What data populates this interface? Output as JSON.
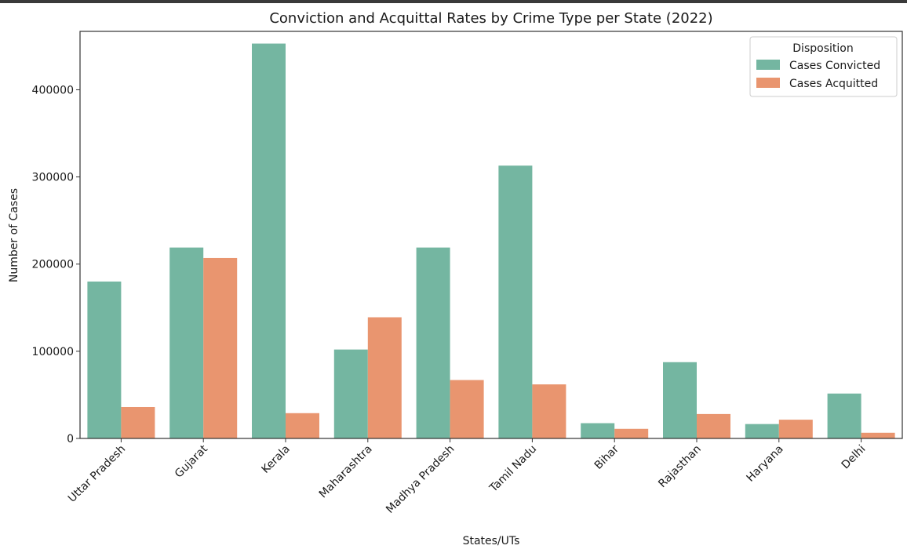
{
  "chart_data": {
    "type": "bar",
    "title": "Conviction and Acquittal Rates by Crime Type per State (2022)",
    "xlabel": "States/UTs",
    "ylabel": "Number of Cases",
    "categories": [
      "Uttar Pradesh",
      "Gujarat",
      "Kerala",
      "Maharashtra",
      "Madhya Pradesh",
      "Tamil Nadu",
      "Bihar",
      "Rajasthan",
      "Haryana",
      "Delhi"
    ],
    "series": [
      {
        "name": "Cases Convicted",
        "color": "#74b6a1",
        "values": [
          180000,
          219000,
          453000,
          102000,
          219000,
          313000,
          17500,
          87500,
          16500,
          51500
        ]
      },
      {
        "name": "Cases Acquitted",
        "color": "#e9956f",
        "values": [
          36000,
          207000,
          29000,
          139000,
          67000,
          62000,
          11000,
          28000,
          21500,
          6500
        ]
      }
    ],
    "ylim": [
      0,
      467000
    ],
    "yticks": [
      0,
      100000,
      200000,
      300000,
      400000
    ],
    "legend": {
      "title": "Disposition",
      "placement": "top-right"
    },
    "grid": false
  }
}
